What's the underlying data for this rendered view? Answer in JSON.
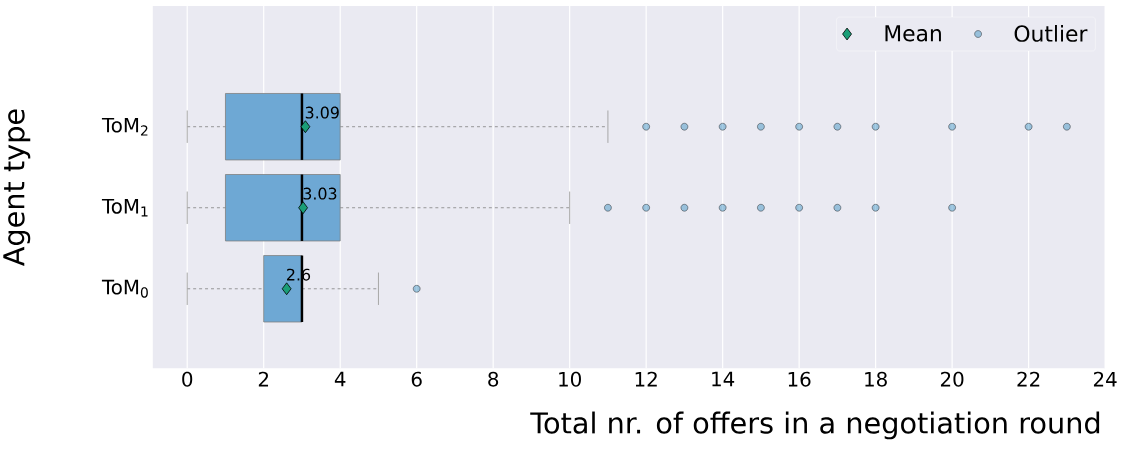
{
  "chart_data": {
    "type": "box",
    "orientation": "horizontal",
    "xlabel": "Total nr. of offers in a negotiation round",
    "ylabel": "Agent type",
    "categories": [
      "ToM$_{2}$",
      "ToM$_{1}$",
      "ToM$_{0}$"
    ],
    "xlim": [
      -0.9,
      24
    ],
    "xticks": [
      0,
      2,
      4,
      6,
      8,
      10,
      12,
      14,
      16,
      18,
      20,
      22,
      24
    ],
    "grid": "x",
    "legend": "top right",
    "series": [
      {
        "type": "box",
        "color": "#6ea8d4",
        "boxes": [
          {
            "low": 0,
            "q1": 1,
            "median": 3,
            "q3": 4,
            "high": 11
          },
          {
            "low": 0,
            "q1": 1,
            "median": 3,
            "q3": 4,
            "high": 10
          },
          {
            "low": 0,
            "q1": 2,
            "median": 3,
            "q3": 3,
            "high": 5
          }
        ]
      },
      {
        "type": "scatter",
        "name": "Mean",
        "color": "#1a9e77",
        "marker": "diamond",
        "x": [
          "ToM$_{2}$",
          "ToM$_{1}$",
          "ToM$_{0}$"
        ],
        "values": [
          3.09,
          3.03,
          2.6
        ],
        "value_labels": [
          "3.09",
          "3.03",
          "2.6"
        ]
      },
      {
        "type": "scatter",
        "name": "Outlier",
        "color": "#0173b2",
        "marker": "circle",
        "x": [
          "ToM$_{2}$",
          "ToM$_{2}$",
          "ToM$_{2}$",
          "ToM$_{2}$",
          "ToM$_{2}$",
          "ToM$_{2}$",
          "ToM$_{2}$",
          "ToM$_{2}$",
          "ToM$_{2}$",
          "ToM$_{2}$",
          "ToM$_{1}$",
          "ToM$_{1}$",
          "ToM$_{1}$",
          "ToM$_{1}$",
          "ToM$_{1}$",
          "ToM$_{1}$",
          "ToM$_{1}$",
          "ToM$_{1}$",
          "ToM$_{1}$",
          "ToM$_{0}$"
        ],
        "values": [
          12,
          13,
          14,
          15,
          16,
          17,
          18,
          20,
          22,
          23,
          11,
          12,
          13,
          14,
          15,
          16,
          17,
          18,
          20,
          6
        ]
      }
    ]
  }
}
